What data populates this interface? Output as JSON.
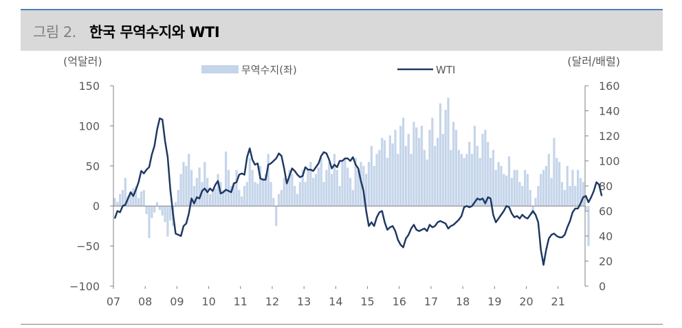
{
  "header": {
    "figure_label": "그림 2.",
    "title": "한국 무역수지와 WTI"
  },
  "chart_data": {
    "type": "bar+line",
    "left_axis": {
      "label": "(억달러)",
      "ylim": [
        -100,
        150
      ],
      "ticks": [
        150,
        100,
        50,
        0,
        -50,
        -100
      ],
      "tick_labels": [
        "150",
        "100",
        "50",
        "0",
        "−50",
        "−100"
      ]
    },
    "right_axis": {
      "label": "(달러/배럴)",
      "ylim": [
        0,
        160
      ],
      "ticks": [
        160,
        140,
        120,
        100,
        80,
        60,
        40,
        20,
        0
      ],
      "tick_labels": [
        "160",
        "140",
        "120",
        "100",
        "80",
        "60",
        "40",
        "20",
        "0"
      ]
    },
    "x_tick_labels": [
      "07",
      "08",
      "09",
      "10",
      "11",
      "12",
      "13",
      "14",
      "15",
      "16",
      "17",
      "18",
      "19",
      "20",
      "21"
    ],
    "x_range": [
      2007.0,
      2021.85
    ],
    "legend": {
      "bar_label": "무역수지(좌)",
      "line_label": "WTI"
    },
    "colors": {
      "bar": "#c5d5ea",
      "line": "#1f3864"
    },
    "bar_series": {
      "name": "무역수지(좌)",
      "frequency": "monthly",
      "start": "2007-01",
      "values": [
        10,
        5,
        15,
        20,
        35,
        12,
        18,
        22,
        25,
        10,
        18,
        20,
        -10,
        -40,
        -15,
        -8,
        5,
        -5,
        -12,
        -20,
        -38,
        -18,
        -25,
        5,
        20,
        40,
        55,
        50,
        65,
        45,
        25,
        35,
        48,
        30,
        55,
        35,
        15,
        20,
        22,
        40,
        30,
        20,
        68,
        45,
        25,
        30,
        45,
        20,
        12,
        25,
        30,
        60,
        45,
        30,
        28,
        50,
        35,
        40,
        65,
        30,
        10,
        -25,
        15,
        20,
        35,
        30,
        45,
        40,
        25,
        15,
        30,
        45,
        30,
        45,
        55,
        35,
        40,
        48,
        60,
        30,
        45,
        55,
        40,
        65,
        45,
        25,
        55,
        60,
        48,
        35,
        20,
        60,
        45,
        55,
        50,
        40,
        55,
        75,
        50,
        65,
        70,
        85,
        82,
        60,
        88,
        78,
        95,
        65,
        100,
        110,
        75,
        90,
        65,
        105,
        98,
        85,
        100,
        70,
        58,
        95,
        110,
        75,
        85,
        128,
        90,
        120,
        135,
        70,
        105,
        95,
        70,
        65,
        60,
        65,
        80,
        65,
        100,
        75,
        60,
        90,
        95,
        80,
        60,
        70,
        45,
        55,
        50,
        40,
        38,
        62,
        35,
        45,
        45,
        30,
        25,
        45,
        40,
        20,
        -10,
        10,
        25,
        40,
        45,
        50,
        65,
        35,
        85,
        60,
        55,
        30,
        20,
        50,
        25,
        45,
        25,
        45,
        35,
        30,
        -5,
        -50
      ]
    },
    "line_series": {
      "name": "WTI",
      "frequency": "monthly",
      "start": "2007-01",
      "values": [
        54,
        60,
        59,
        64,
        65,
        70,
        75,
        72,
        77,
        83,
        92,
        90,
        93,
        95,
        105,
        112,
        125,
        134,
        133,
        116,
        103,
        77,
        58,
        42,
        41,
        40,
        48,
        50,
        58,
        70,
        66,
        71,
        70,
        76,
        78,
        75,
        78,
        76,
        81,
        84,
        74,
        75,
        77,
        76,
        75,
        82,
        83,
        89,
        90,
        89,
        103,
        110,
        101,
        97,
        98,
        86,
        85,
        85,
        97,
        98,
        100,
        102,
        106,
        104,
        94,
        82,
        88,
        94,
        92,
        89,
        87,
        88,
        95,
        93,
        93,
        92,
        95,
        98,
        104,
        107,
        106,
        101,
        94,
        97,
        95,
        100,
        100,
        102,
        102,
        100,
        103,
        97,
        94,
        84,
        76,
        60,
        48,
        51,
        48,
        55,
        59,
        60,
        51,
        45,
        47,
        48,
        44,
        37,
        33,
        31,
        38,
        41,
        46,
        49,
        45,
        44,
        45,
        46,
        44,
        49,
        47,
        48,
        51,
        52,
        51,
        50,
        46,
        48,
        49,
        51,
        53,
        56,
        63,
        64,
        63,
        64,
        67,
        70,
        69,
        70,
        66,
        71,
        70,
        57,
        51,
        54,
        57,
        60,
        64,
        63,
        58,
        55,
        56,
        54,
        57,
        55,
        54,
        57,
        60,
        57,
        51,
        29,
        17,
        29,
        38,
        41,
        42,
        40,
        39,
        39,
        41,
        47,
        52,
        59,
        62,
        62,
        66,
        71,
        72,
        67,
        71,
        76,
        83,
        81,
        72
      ]
    }
  }
}
